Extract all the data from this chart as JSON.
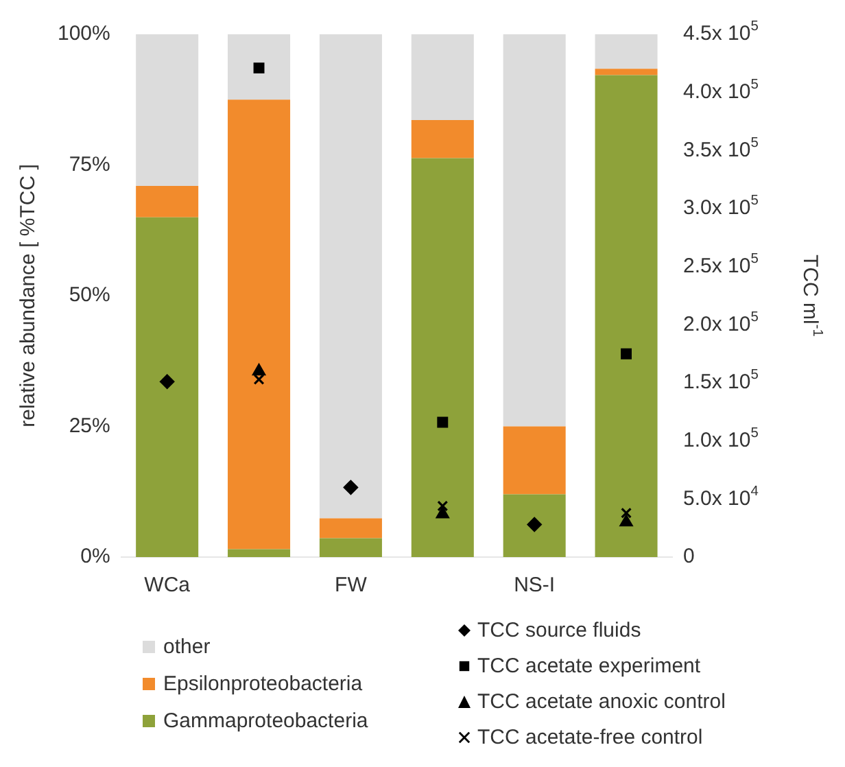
{
  "chart_data": {
    "type": "bar",
    "stacked": true,
    "categories": [
      "WCa",
      null,
      "FW",
      null,
      "NS-I",
      null
    ],
    "ylabel": "relative abundance [ %TCC ]",
    "y2label": "TCC ml$^{-1}$",
    "ylim": [
      0,
      100
    ],
    "yticks": [
      {
        "value": 0,
        "label": "0%"
      },
      {
        "value": 25,
        "label": "25%"
      },
      {
        "value": 50,
        "label": "50%"
      },
      {
        "value": 75,
        "label": "75%"
      },
      {
        "value": 100,
        "label": "100%"
      }
    ],
    "y2lim": [
      0,
      450000
    ],
    "y2ticks": [
      0,
      {
        "value": 50000,
        "label": "5.0x 10$^{4}$"
      },
      {
        "value": 100000,
        "label": "1.0x 10$^{5}$"
      },
      {
        "value": 150000,
        "label": "1.5x 10$^{5}$"
      },
      {
        "value": 200000,
        "label": "2.0x 10$^{5}$"
      },
      {
        "value": 250000,
        "label": "2.5x 10$^{5}$"
      },
      {
        "value": 300000,
        "label": "3.0x 10$^{5}$"
      },
      {
        "value": 350000,
        "label": "3.5x 10$^{5}$"
      },
      {
        "value": 400000,
        "label": "4.0x 10$^{5}$"
      },
      {
        "value": 450000,
        "label": "4.5x 10$^{5}$"
      }
    ],
    "legend": "bottom",
    "series": [
      {
        "name": "Gammaproteobacteria",
        "color": "#8ea23a",
        "values": [
          65,
          1.5,
          3.6,
          76.3,
          12,
          92.2
        ]
      },
      {
        "name": "Epsilonproteobacteria",
        "color": "#f28b2c",
        "values": [
          6,
          86,
          3.8,
          7.3,
          13,
          1.2
        ]
      },
      {
        "name": "other",
        "color": "#dcdcdc",
        "values": [
          29,
          12.5,
          92.6,
          16.4,
          75,
          6.6
        ]
      },
      {
        "name": "TCC source fluids",
        "type": "scatter",
        "axis": "y2",
        "marker": "diamond",
        "color": "#000000",
        "values": [
          151000,
          null,
          60000,
          null,
          28000,
          null
        ]
      },
      {
        "name": "TCC acetate experiment",
        "type": "scatter",
        "axis": "y2",
        "marker": "square",
        "color": "#000000",
        "values": [
          null,
          421000,
          null,
          116000,
          null,
          175000
        ]
      },
      {
        "name": "TCC acetate anoxic control",
        "type": "scatter",
        "axis": "y2",
        "marker": "triangle",
        "color": "#000000",
        "values": [
          null,
          160000,
          null,
          37000,
          null,
          30000
        ]
      },
      {
        "name": "TCC acetate-free control",
        "type": "scatter",
        "axis": "y2",
        "marker": "cross",
        "color": "#000000",
        "values": [
          null,
          153000,
          null,
          44000,
          null,
          38000
        ]
      }
    ]
  }
}
